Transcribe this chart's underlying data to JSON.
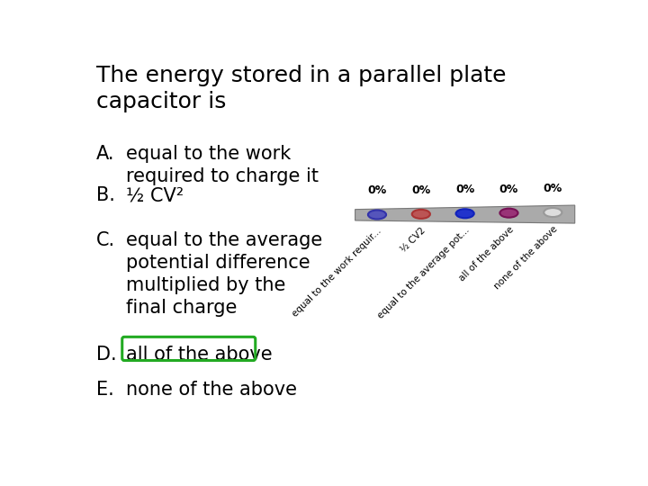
{
  "title": "The energy stored in a parallel plate\ncapacitor is",
  "options": [
    {
      "label": "A.",
      "text": "equal to the work\nrequired to charge it"
    },
    {
      "label": "B.",
      "text": "½ CV²"
    },
    {
      "label": "C.",
      "text": "equal to the average\npotential difference\nmultiplied by the\nfinal charge"
    },
    {
      "label": "D.",
      "text": "all of the above",
      "highlight": true
    },
    {
      "label": "E.",
      "text": "none of the above"
    }
  ],
  "bar_labels": [
    "0%",
    "0%",
    "0%",
    "0%",
    "0%"
  ],
  "bar_tick_labels": [
    "equal to the work requir...",
    "½ CV2",
    "equal to the average pot...",
    "all of the above",
    "none of the above"
  ],
  "dot_colors": [
    "#5555bb",
    "#bb5555",
    "#2233cc",
    "#993377",
    "#dddddd"
  ],
  "dot_border_colors": [
    "#3333aa",
    "#aa3333",
    "#1122bb",
    "#771155",
    "#999999"
  ],
  "background_color": "#ffffff",
  "title_fontsize": 18,
  "option_fontsize": 15,
  "label_fontsize": 15,
  "bar_color": "#aaaaaa",
  "highlight_color": "#22aa22",
  "text_color": "#000000",
  "percent_fontsize": 9
}
